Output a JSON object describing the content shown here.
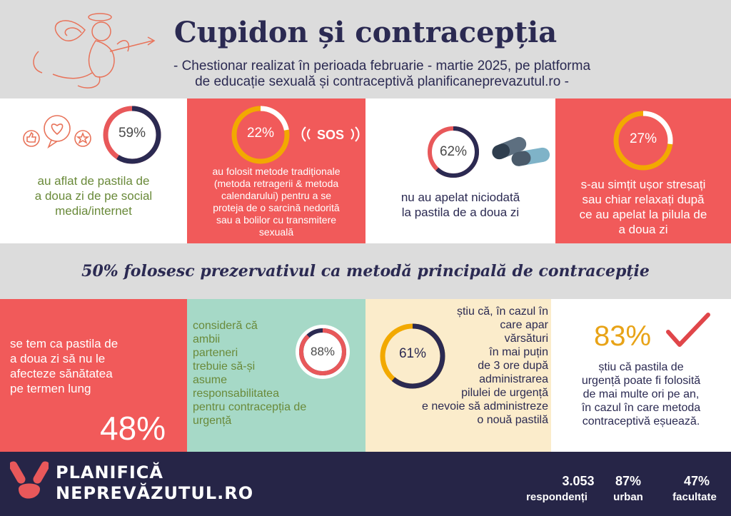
{
  "header": {
    "title": "Cupidon și contracepția",
    "subtitle_line1": "- Chestionar realizat în perioada februarie - martie 2025,  pe platforma",
    "subtitle_line2": "de educație sexuală și contraceptivă planificaneprevazutul.ro -"
  },
  "top_row": [
    {
      "pct": "59%",
      "value": 0.59,
      "text": [
        "au aflat de pastila de",
        "a doua zi de pe social",
        "media/internet"
      ]
    },
    {
      "pct": "22%",
      "value": 0.22,
      "text": [
        "au folosit metode tradiționale",
        "(metoda retragerii & metoda",
        "calendarului) pentru a se",
        "proteja de o sarcină nedorită",
        "sau a bolilor cu transmitere",
        "sexuală"
      ],
      "sos_label": "SOS"
    },
    {
      "pct": "62%",
      "value": 0.62,
      "text": [
        "nu au apelat niciodată",
        "la pastila de a doua zi"
      ]
    },
    {
      "pct": "27%",
      "value": 0.27,
      "text": [
        "s-au simțit ușor stresați",
        "sau chiar relaxați după",
        "ce au apelat la pilula de",
        "a doua zi"
      ]
    }
  ],
  "band": {
    "text": "50% folosesc prezervativul ca metodă principală de contracepție"
  },
  "bottom_row": [
    {
      "pct": "48%",
      "text": [
        "se tem ca pastila de",
        "a doua zi să nu le",
        "afecteze sănătatea",
        "pe termen lung"
      ]
    },
    {
      "pct": "88%",
      "value": 0.88,
      "text": [
        "consideră că",
        "ambii",
        "parteneri",
        "trebuie să-și",
        "asume",
        "responsabilitatea",
        "pentru contracepția de",
        "urgență"
      ]
    },
    {
      "pct": "61%",
      "value": 0.61,
      "text_top": [
        "știu că, în cazul în",
        "care apar",
        "vărsături",
        "în mai puțin",
        "de 3 ore după",
        "administrarea"
      ],
      "text_bottom": [
        "pilulei de urgență",
        "e nevoie să administreze",
        "o nouă pastilă"
      ]
    },
    {
      "pct": "83%",
      "text": [
        "știu că pastila de",
        "urgență poate fi folosită",
        "de mai multe ori pe an,",
        "în cazul în care metoda",
        "contraceptivă eșuează."
      ]
    }
  ],
  "footer": {
    "logo_line1": "PLANIFICĂ",
    "logo_line2": "NEPREVĂZUTUL.RO",
    "stats": [
      {
        "value": "3.053",
        "label": "respondenți"
      },
      {
        "value": "87%",
        "label": "urban"
      },
      {
        "value": "47%",
        "label": "facultate"
      }
    ]
  },
  "colors": {
    "navy": "#2b2a52",
    "coral": "#f15a5a",
    "gold": "#f2a900",
    "mint": "#a6d9c7",
    "cream": "#fbeccb",
    "gray": "#dcdcdc",
    "olive_text": "#6a8a3a"
  },
  "icons": [
    "cupid-illustration-icon",
    "social-media-icon",
    "sos-icon",
    "pills-icon",
    "checkmark-icon",
    "pill-logo-icon"
  ]
}
